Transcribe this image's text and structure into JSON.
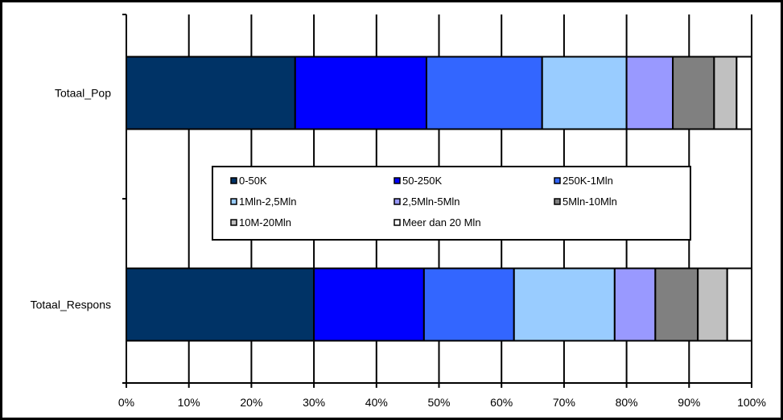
{
  "chart_data": {
    "type": "bar",
    "orientation": "horizontal",
    "stacked": "percent",
    "title": "",
    "xlabel": "",
    "ylabel": "",
    "xlim": [
      0,
      100
    ],
    "x_ticks": [
      "0%",
      "10%",
      "20%",
      "30%",
      "40%",
      "50%",
      "60%",
      "70%",
      "80%",
      "90%",
      "100%"
    ],
    "categories": [
      "Totaal_Pop",
      "Totaal_Respons"
    ],
    "grid": "vertical",
    "legend_position": "center",
    "series": [
      {
        "name": "0-50K",
        "color": "#003366",
        "values": [
          27.0,
          30.0
        ]
      },
      {
        "name": "50-250K",
        "color": "#0000FF",
        "values": [
          21.0,
          17.6
        ]
      },
      {
        "name": "250K-1Mln",
        "color": "#3366FF",
        "values": [
          18.5,
          14.4
        ]
      },
      {
        "name": "1Mln-2,5Mln",
        "color": "#99CCFF",
        "values": [
          13.5,
          16.1
        ]
      },
      {
        "name": "2,5Mln-5Mln",
        "color": "#9999FF",
        "values": [
          7.4,
          6.5
        ]
      },
      {
        "name": "5Mln-10Mln",
        "color": "#808080",
        "values": [
          6.6,
          6.8
        ]
      },
      {
        "name": "10M-20Mln",
        "color": "#C0C0C0",
        "values": [
          3.6,
          4.7
        ]
      },
      {
        "name": "Meer dan 20 Mln",
        "color": "#FFFFFF",
        "values": [
          2.4,
          3.9
        ]
      }
    ]
  }
}
